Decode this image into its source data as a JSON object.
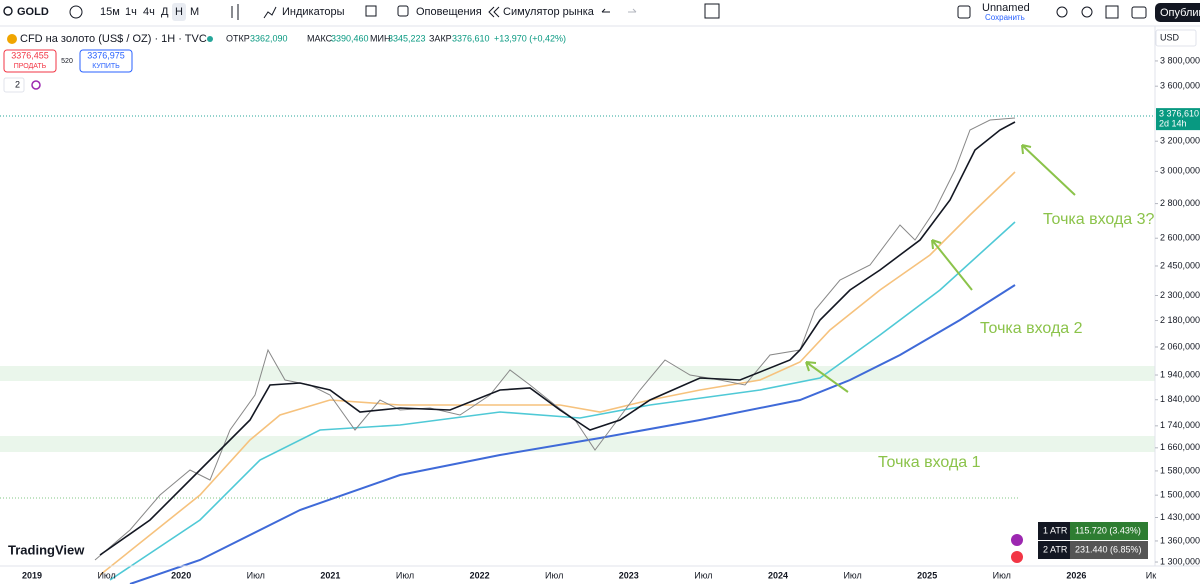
{
  "toolbar": {
    "symbol": "GOLD",
    "intervals": [
      "15м",
      "1ч",
      "4ч",
      "Д",
      "Н",
      "М"
    ],
    "indicators": "Индикаторы",
    "alerts": "Оповещения",
    "replay": "Симулятор рынка",
    "layout_name": "Unnamed",
    "layout_status": "Сохранить",
    "publish": "Опублик"
  },
  "legend": {
    "instrument": "CFD на золото (US$ / OZ) · 1H · TVC",
    "ohlc": [
      {
        "label": "ОТКР",
        "value": "3362,090"
      },
      {
        "label": "МАКС",
        "value": "3390,460"
      },
      {
        "label": "МИН",
        "value": "3345,223"
      },
      {
        "label": "ЗАКР",
        "value": "3376,610"
      }
    ],
    "change": "+13,970 (+0,42%)",
    "sell_price": "3376,455",
    "sell_label": "ПРОДАТЬ",
    "spread": "520",
    "buy_price": "3376,975",
    "buy_label": "КУПИТЬ",
    "indicators_count": "2"
  },
  "price_axis": {
    "currency": "USD",
    "scale": "log",
    "lim": [
      1289,
      3890
    ],
    "ticks": [
      {
        "value": 3800,
        "label": "3 800,000"
      },
      {
        "value": 3600,
        "label": "3 600,000"
      },
      {
        "value": 3200,
        "label": "3 200,000"
      },
      {
        "value": 3000,
        "label": "3 000,000"
      },
      {
        "value": 2800,
        "label": "2 800,000"
      },
      {
        "value": 2600,
        "label": "2 600,000"
      },
      {
        "value": 2450,
        "label": "2 450,000"
      },
      {
        "value": 2300,
        "label": "2 300,000"
      },
      {
        "value": 2180,
        "label": "2 180,000"
      },
      {
        "value": 2060,
        "label": "2 060,000"
      },
      {
        "value": 1940,
        "label": "1 940,000"
      },
      {
        "value": 1840,
        "label": "1 840,000"
      },
      {
        "value": 1740,
        "label": "1 740,000"
      },
      {
        "value": 1660,
        "label": "1 660,000"
      },
      {
        "value": 1580,
        "label": "1 580,000"
      },
      {
        "value": 1500,
        "label": "1 500,000"
      },
      {
        "value": 1430,
        "label": "1 430,000"
      },
      {
        "value": 1360,
        "label": "1 360,000"
      },
      {
        "value": 1300,
        "label": "1 300,000"
      }
    ],
    "last_price": {
      "value": 3376.61,
      "label": "3 376,610"
    },
    "countdown": "2d 14h"
  },
  "time_axis": {
    "categories": [
      "2019",
      "Июл",
      "2020",
      "Июл",
      "2021",
      "Июл",
      "2022",
      "Июл",
      "2023",
      "Июл",
      "2024",
      "Июл",
      "2025",
      "Июл",
      "2026",
      "Ик"
    ]
  },
  "annotations": [
    "Точка входа 1",
    "Точка входа 2",
    "Точка входа 3?"
  ],
  "atr": [
    {
      "label": "1 ATR",
      "value": "115.720 (3.43%)"
    },
    {
      "label": "2 ATR",
      "value": "231.440 (6.85%)"
    }
  ],
  "brand": "TradingView"
}
